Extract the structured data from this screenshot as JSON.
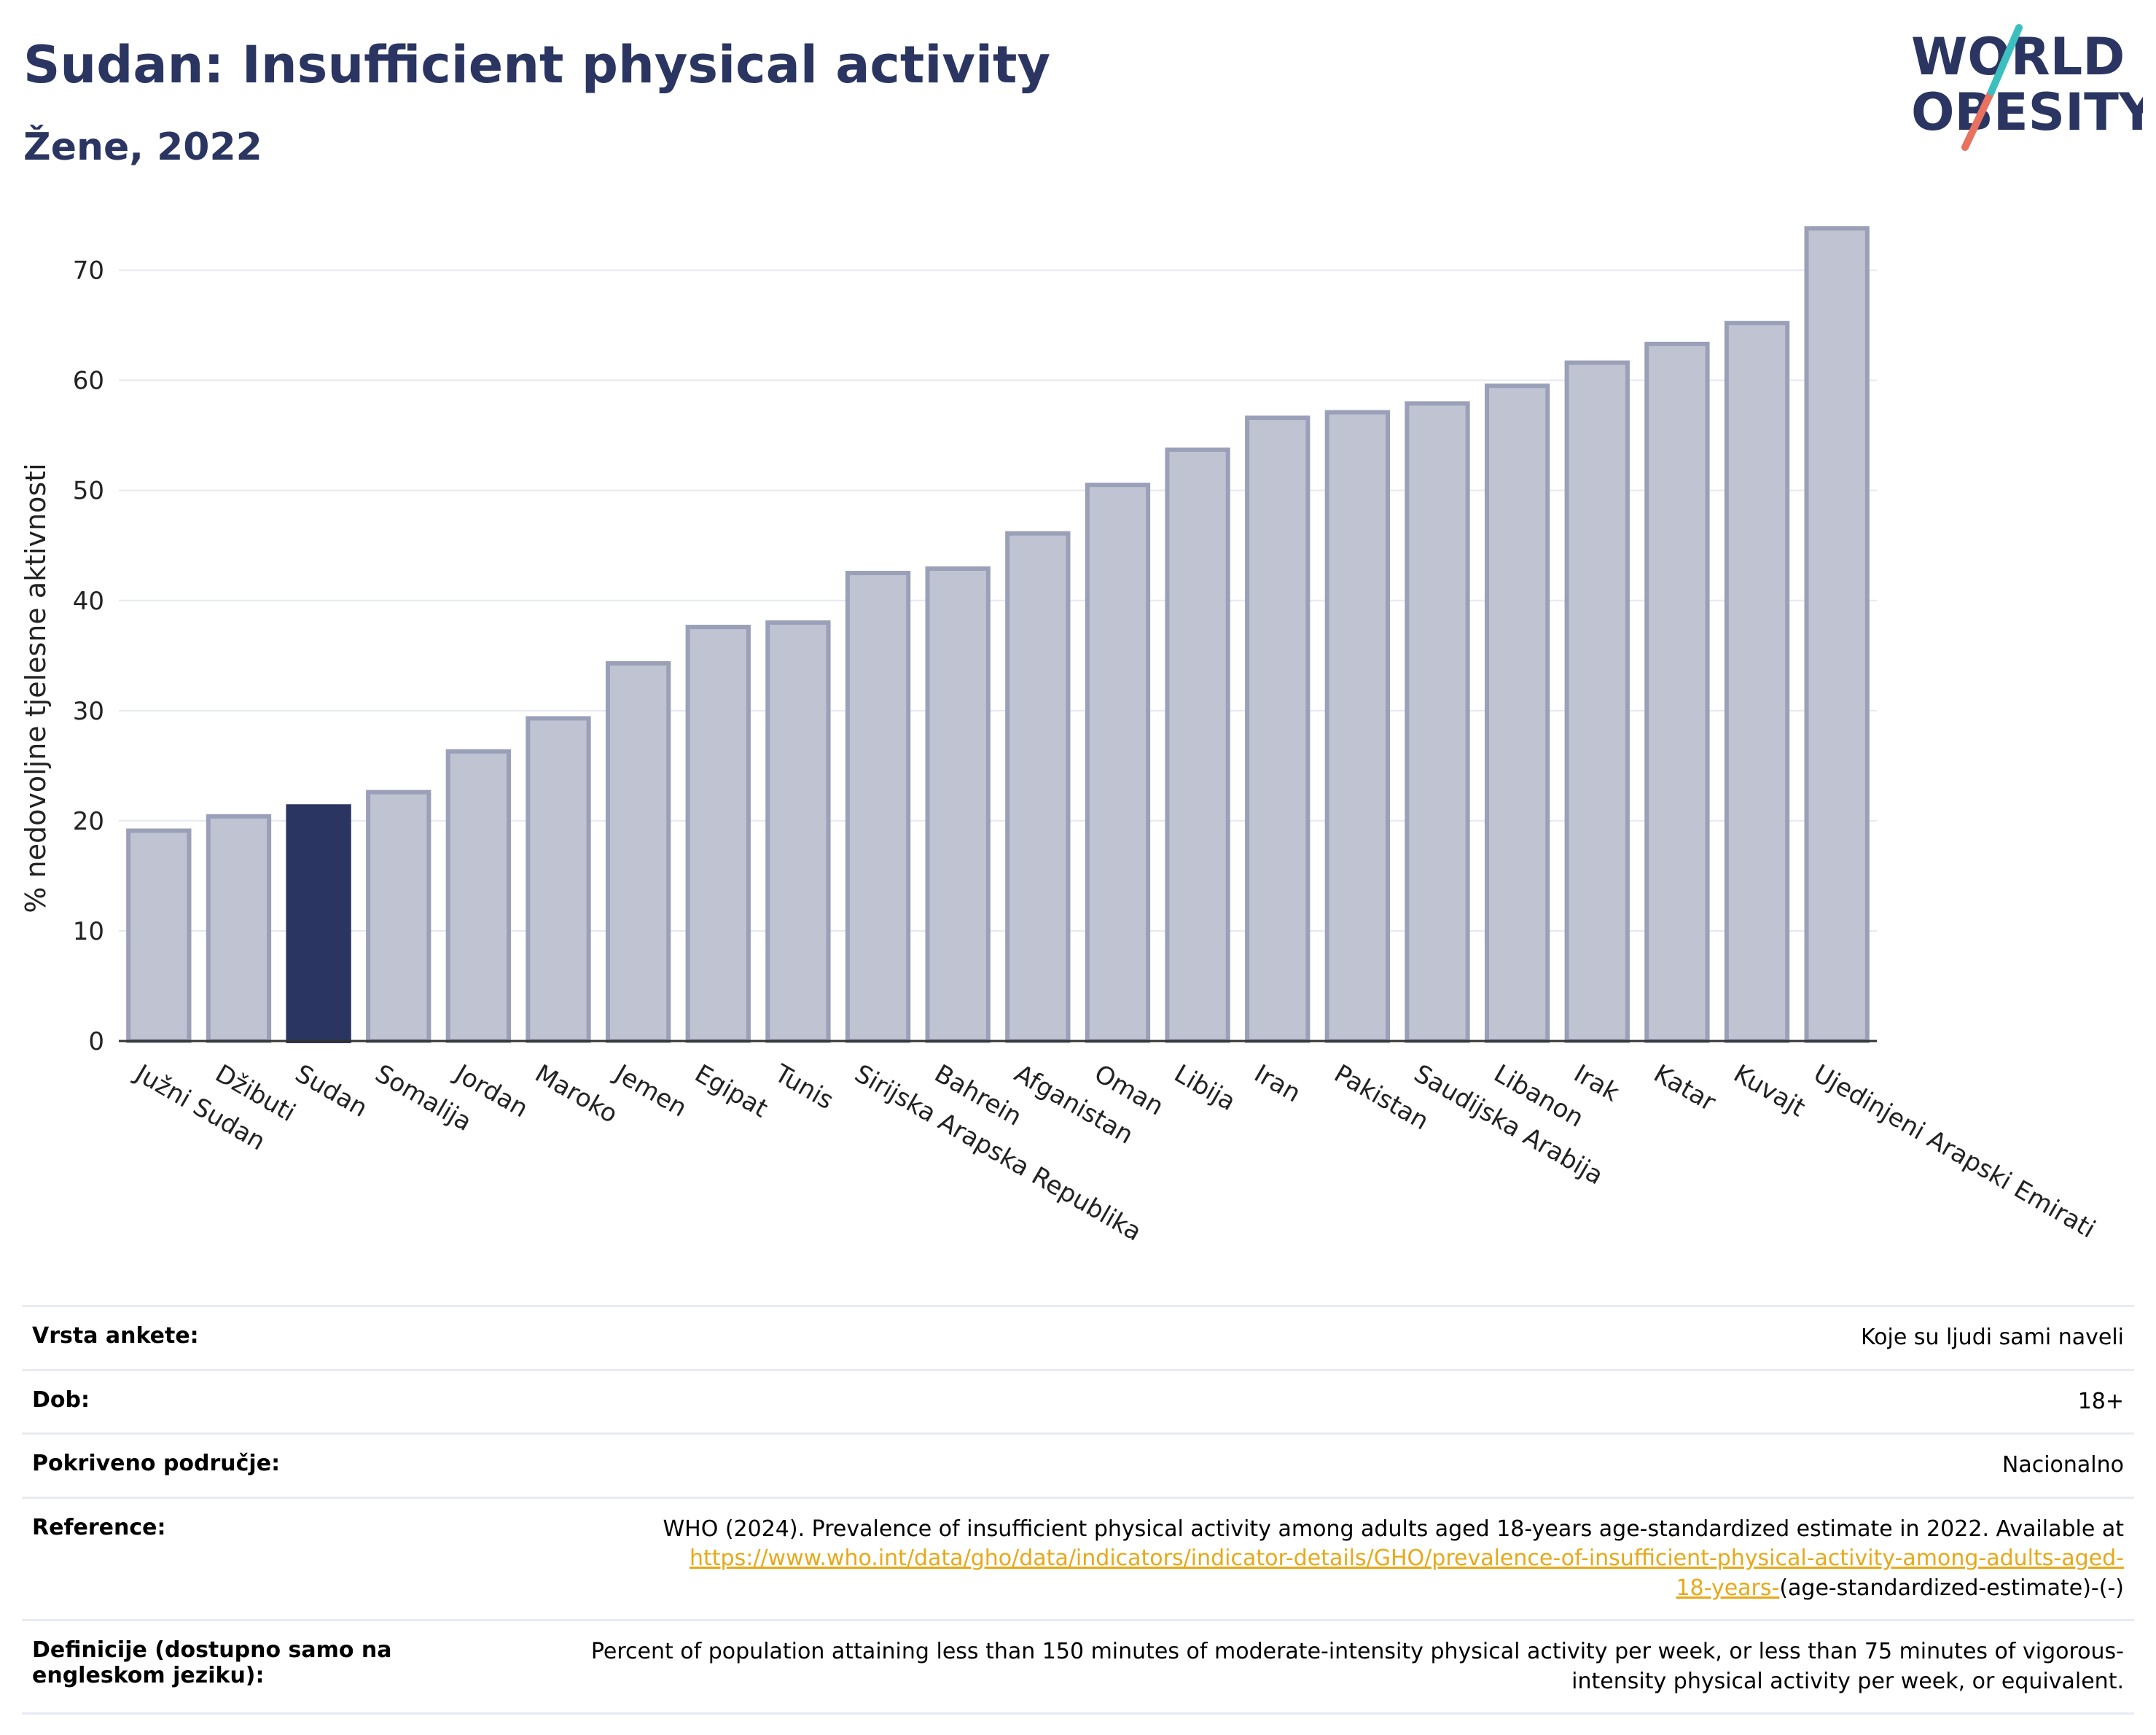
{
  "header": {
    "title": "Sudan: Insufficient physical activity",
    "subtitle": "Žene, 2022"
  },
  "logo": {
    "line1": "WORLD",
    "line2": "OBESITY"
  },
  "colors": {
    "highlight": "#2b3561",
    "bar": "#bfc3d2",
    "bar_edge": "#9aa0b8",
    "link": "#e8a818"
  },
  "chart_data": {
    "type": "bar",
    "title": "Sudan: Insufficient physical activity",
    "subtitle": "Žene, 2022",
    "ylabel": "% nedovoljne tjelesne aktivnosti",
    "xlabel": "",
    "ylim": [
      0,
      76
    ],
    "yticks": [
      0,
      10,
      20,
      30,
      40,
      50,
      60,
      70
    ],
    "grid": true,
    "highlight": "Sudan",
    "categories": [
      "Južni Sudan",
      "Džibuti",
      "Sudan",
      "Somalija",
      "Jordan",
      "Maroko",
      "Jemen",
      "Egipat",
      "Tunis",
      "Sirijska Arapska Republika",
      "Bahrein",
      "Afganistan",
      "Oman",
      "Libija",
      "Iran",
      "Pakistan",
      "Saudijska Arabija",
      "Libanon",
      "Irak",
      "Katar",
      "Kuvajt",
      "Ujedinjeni Arapski Emirati"
    ],
    "values": [
      19.1,
      20.4,
      21.3,
      22.6,
      26.3,
      29.3,
      34.3,
      37.6,
      38.0,
      42.5,
      42.9,
      46.1,
      50.5,
      53.7,
      56.6,
      57.1,
      57.9,
      59.5,
      61.6,
      63.3,
      65.2,
      73.8
    ]
  },
  "info": {
    "survey_label": "Vrsta ankete:",
    "survey_value": "Koje su ljudi sami naveli",
    "age_label": "Dob:",
    "age_value": "18+",
    "coverage_label": "Pokriveno područje:",
    "coverage_value": "Nacionalno",
    "ref_label": "Reference:",
    "ref_text": "WHO (2024). Prevalence of insufficient physical activity among adults aged 18-years age-standardized estimate in 2022. Available at",
    "ref_link_1": "https://www.who.int/data/gho/data/indicators/indicator-details/GHO/prevalence-of-insufficient-physical-activity-among-adults-aged-",
    "ref_link_2": "18-years-",
    "ref_tail": "(age-standardized-estimate)-(-)",
    "def_label": "Definicije (dostupno samo na engleskom jeziku):",
    "def_value": "Percent of population attaining less than 150 minutes of moderate-intensity physical activity per week, or less than 75 minutes of vigorous-intensity physical activity per week, or equivalent."
  }
}
